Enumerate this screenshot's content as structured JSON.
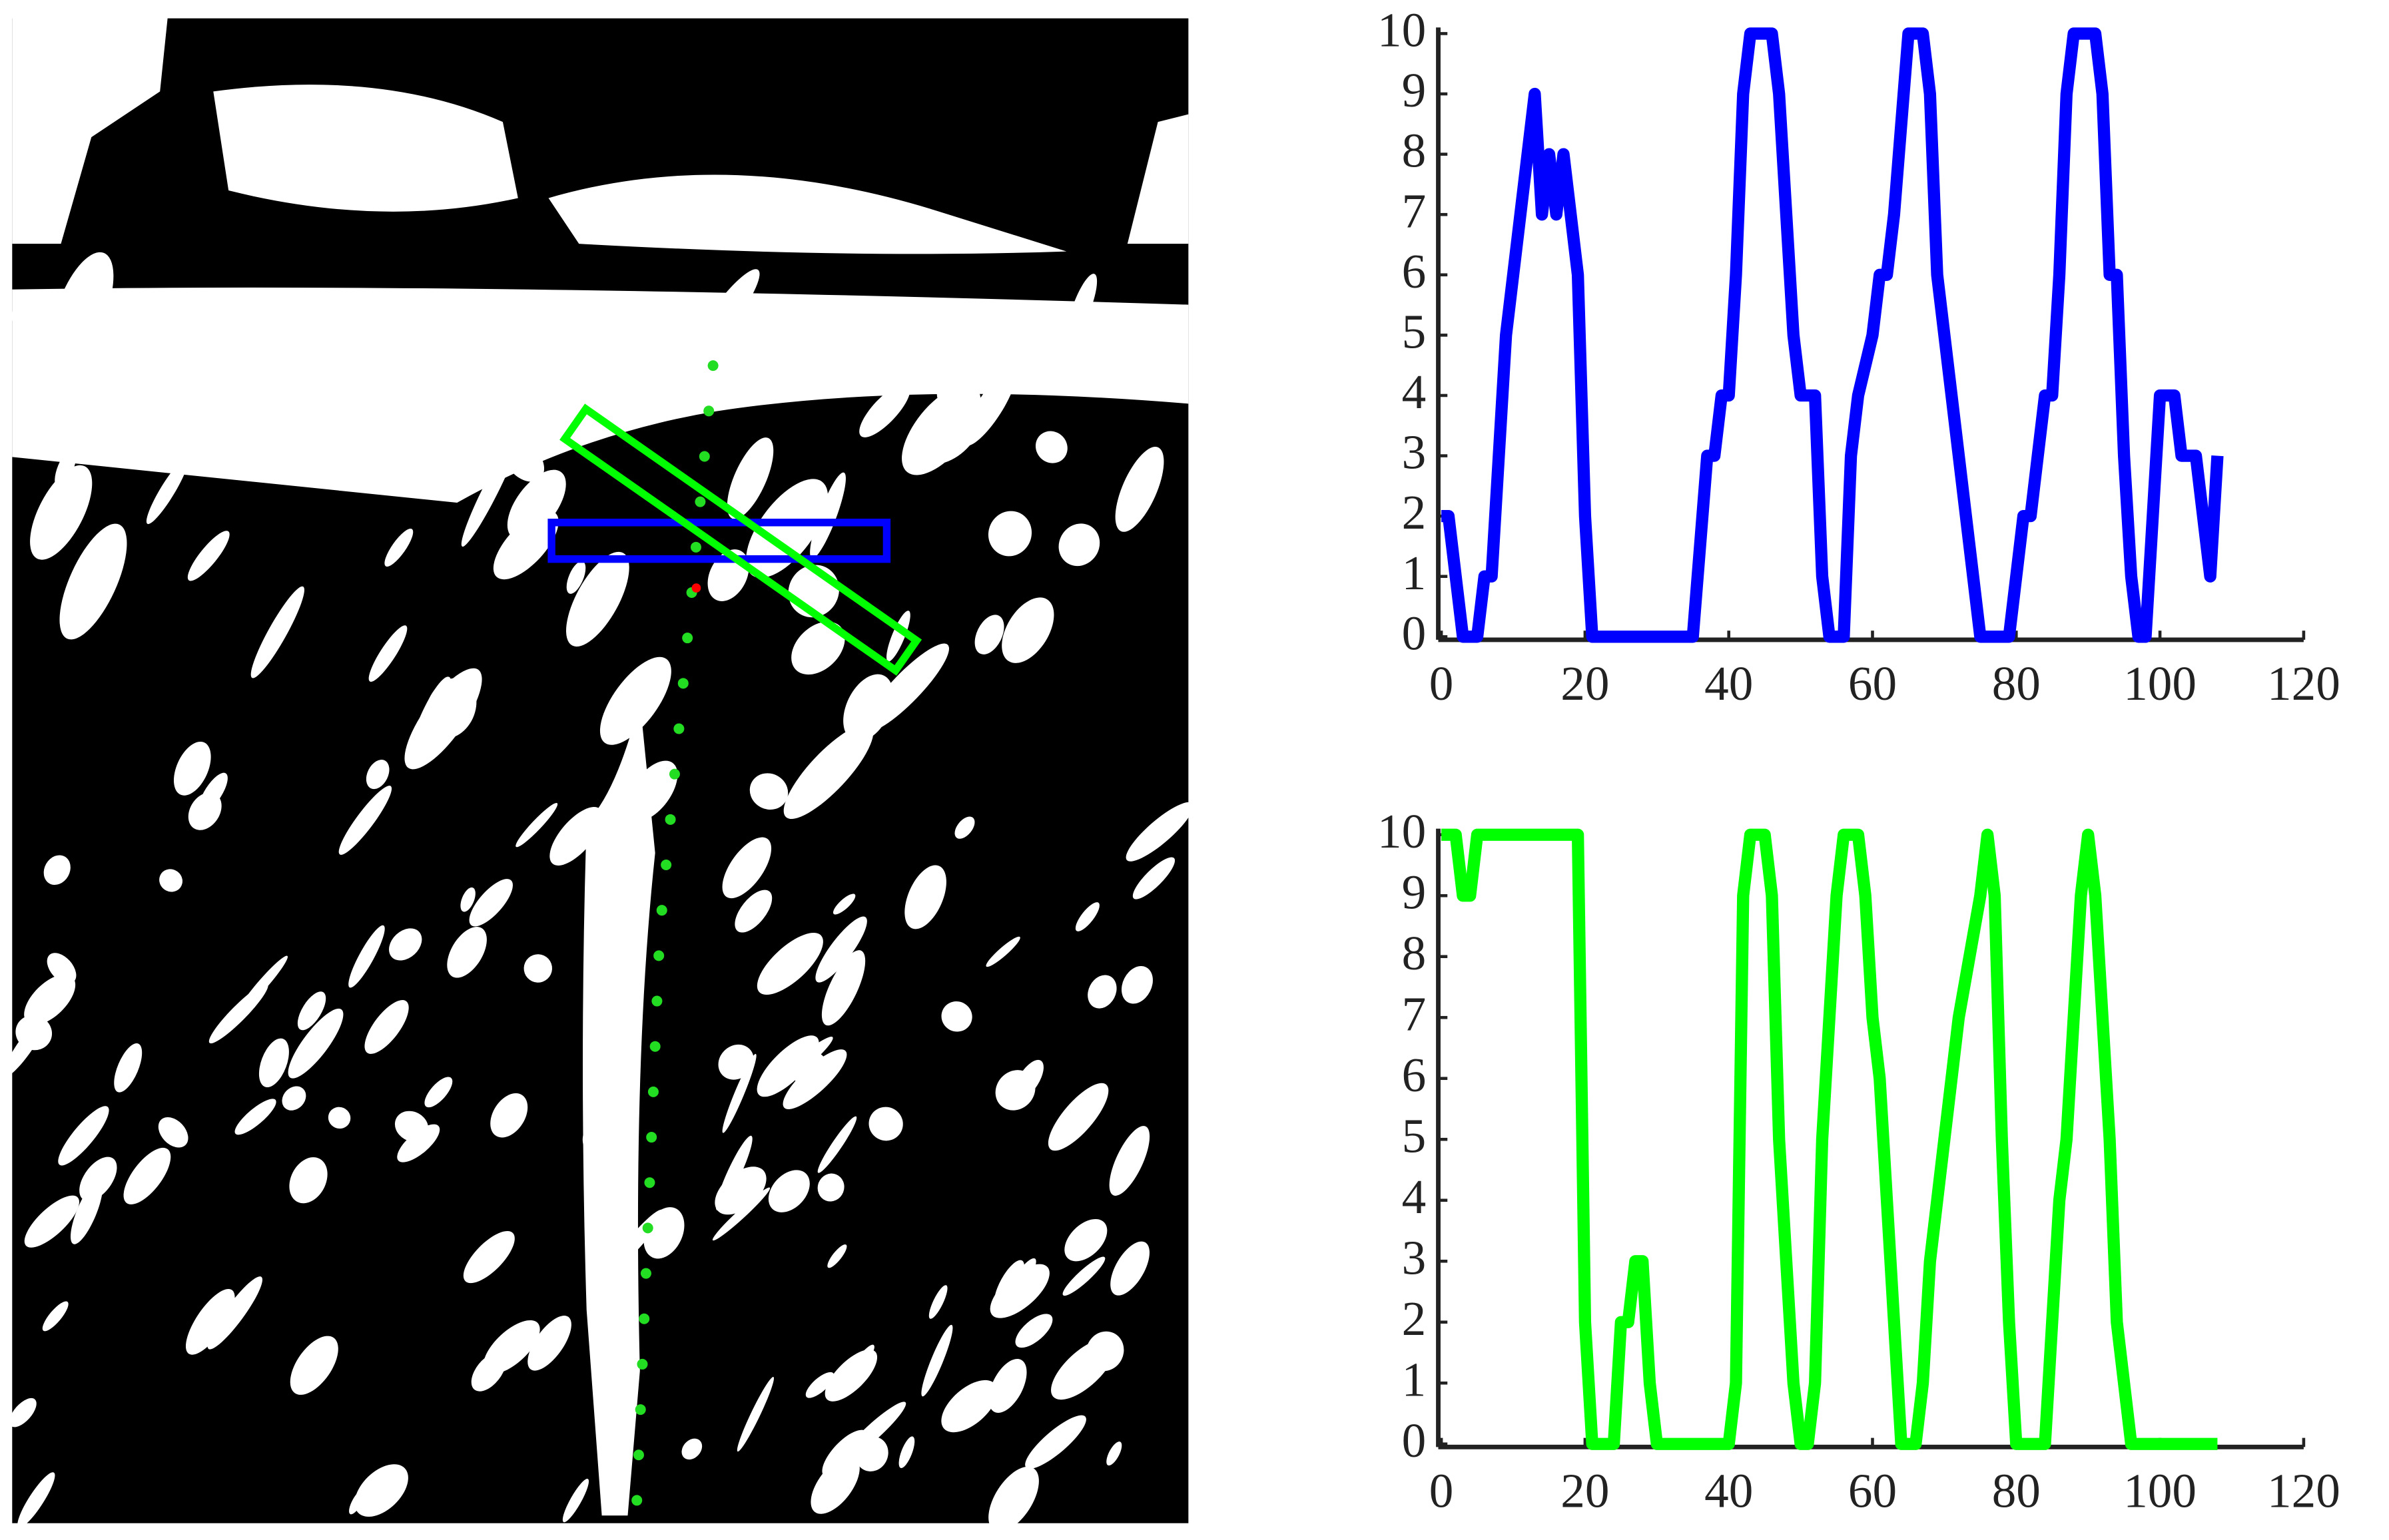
{
  "chart_data": [
    {
      "type": "line",
      "xlim": [
        0,
        120
      ],
      "ylim": [
        0,
        10
      ],
      "xticks": [
        0,
        20,
        40,
        60,
        80,
        100,
        120
      ],
      "yticks": [
        0,
        1,
        2,
        3,
        4,
        5,
        6,
        7,
        8,
        9,
        10
      ],
      "x": [
        0,
        1,
        3,
        5,
        6,
        7,
        8,
        9,
        11,
        12,
        13,
        14,
        15,
        16,
        17,
        19,
        20,
        21,
        35,
        37,
        38,
        39,
        40,
        41,
        42,
        43,
        46,
        47,
        48,
        49,
        50,
        52,
        53,
        54,
        56,
        57,
        58,
        60,
        61,
        62,
        63,
        65,
        67,
        68,
        69,
        71,
        73,
        74,
        75,
        79,
        80,
        81,
        82,
        83,
        84,
        85,
        86,
        87,
        88,
        91,
        92,
        93,
        94,
        95,
        96,
        97,
        98,
        99,
        100,
        102,
        103,
        105,
        106,
        107,
        108
      ],
      "series": [
        {
          "color": "#0000ff",
          "values": [
            2,
            2,
            0,
            0,
            1,
            1,
            3,
            5,
            7,
            8,
            9,
            7,
            8,
            7,
            8,
            6,
            2,
            0,
            0,
            3,
            3,
            4,
            4,
            6,
            9,
            10,
            10,
            9,
            7,
            5,
            4,
            4,
            1,
            0,
            0,
            3,
            4,
            5,
            6,
            6,
            7,
            10,
            10,
            9,
            6,
            4,
            2,
            1,
            0,
            0,
            1,
            2,
            2,
            3,
            4,
            4,
            6,
            9,
            10,
            10,
            9,
            6,
            6,
            3,
            1,
            0,
            0,
            2,
            4,
            4,
            3,
            3,
            2,
            1,
            3
          ]
        }
      ]
    },
    {
      "type": "line",
      "xlim": [
        0,
        120
      ],
      "ylim": [
        0,
        10
      ],
      "xticks": [
        0,
        20,
        40,
        60,
        80,
        100,
        120
      ],
      "yticks": [
        0,
        1,
        2,
        3,
        4,
        5,
        6,
        7,
        8,
        9,
        10
      ],
      "x": [
        0,
        2,
        3,
        4,
        5,
        19,
        20,
        21,
        24,
        25,
        26,
        27,
        28,
        29,
        30,
        40,
        41,
        42,
        43,
        45,
        46,
        47,
        49,
        50,
        51,
        52,
        53,
        55,
        56,
        58,
        59,
        60,
        61,
        62,
        63,
        64,
        66,
        67,
        68,
        70,
        72,
        75,
        76,
        77,
        78,
        79,
        80,
        84,
        85,
        86,
        87,
        89,
        90,
        91,
        92,
        93,
        94,
        96,
        108
      ],
      "series": [
        {
          "color": "#00ff00",
          "values": [
            10,
            10,
            9,
            9,
            10,
            10,
            2,
            0,
            0,
            2,
            2,
            3,
            3,
            1,
            0,
            0,
            1,
            9,
            10,
            10,
            9,
            5,
            1,
            0,
            0,
            1,
            5,
            9,
            10,
            10,
            9,
            7,
            6,
            4,
            2,
            0,
            0,
            1,
            3,
            5,
            7,
            9,
            10,
            9,
            5,
            2,
            0,
            0,
            2,
            4,
            5,
            9,
            10,
            9,
            7,
            5,
            2,
            0,
            0
          ]
        }
      ]
    }
  ]
}
